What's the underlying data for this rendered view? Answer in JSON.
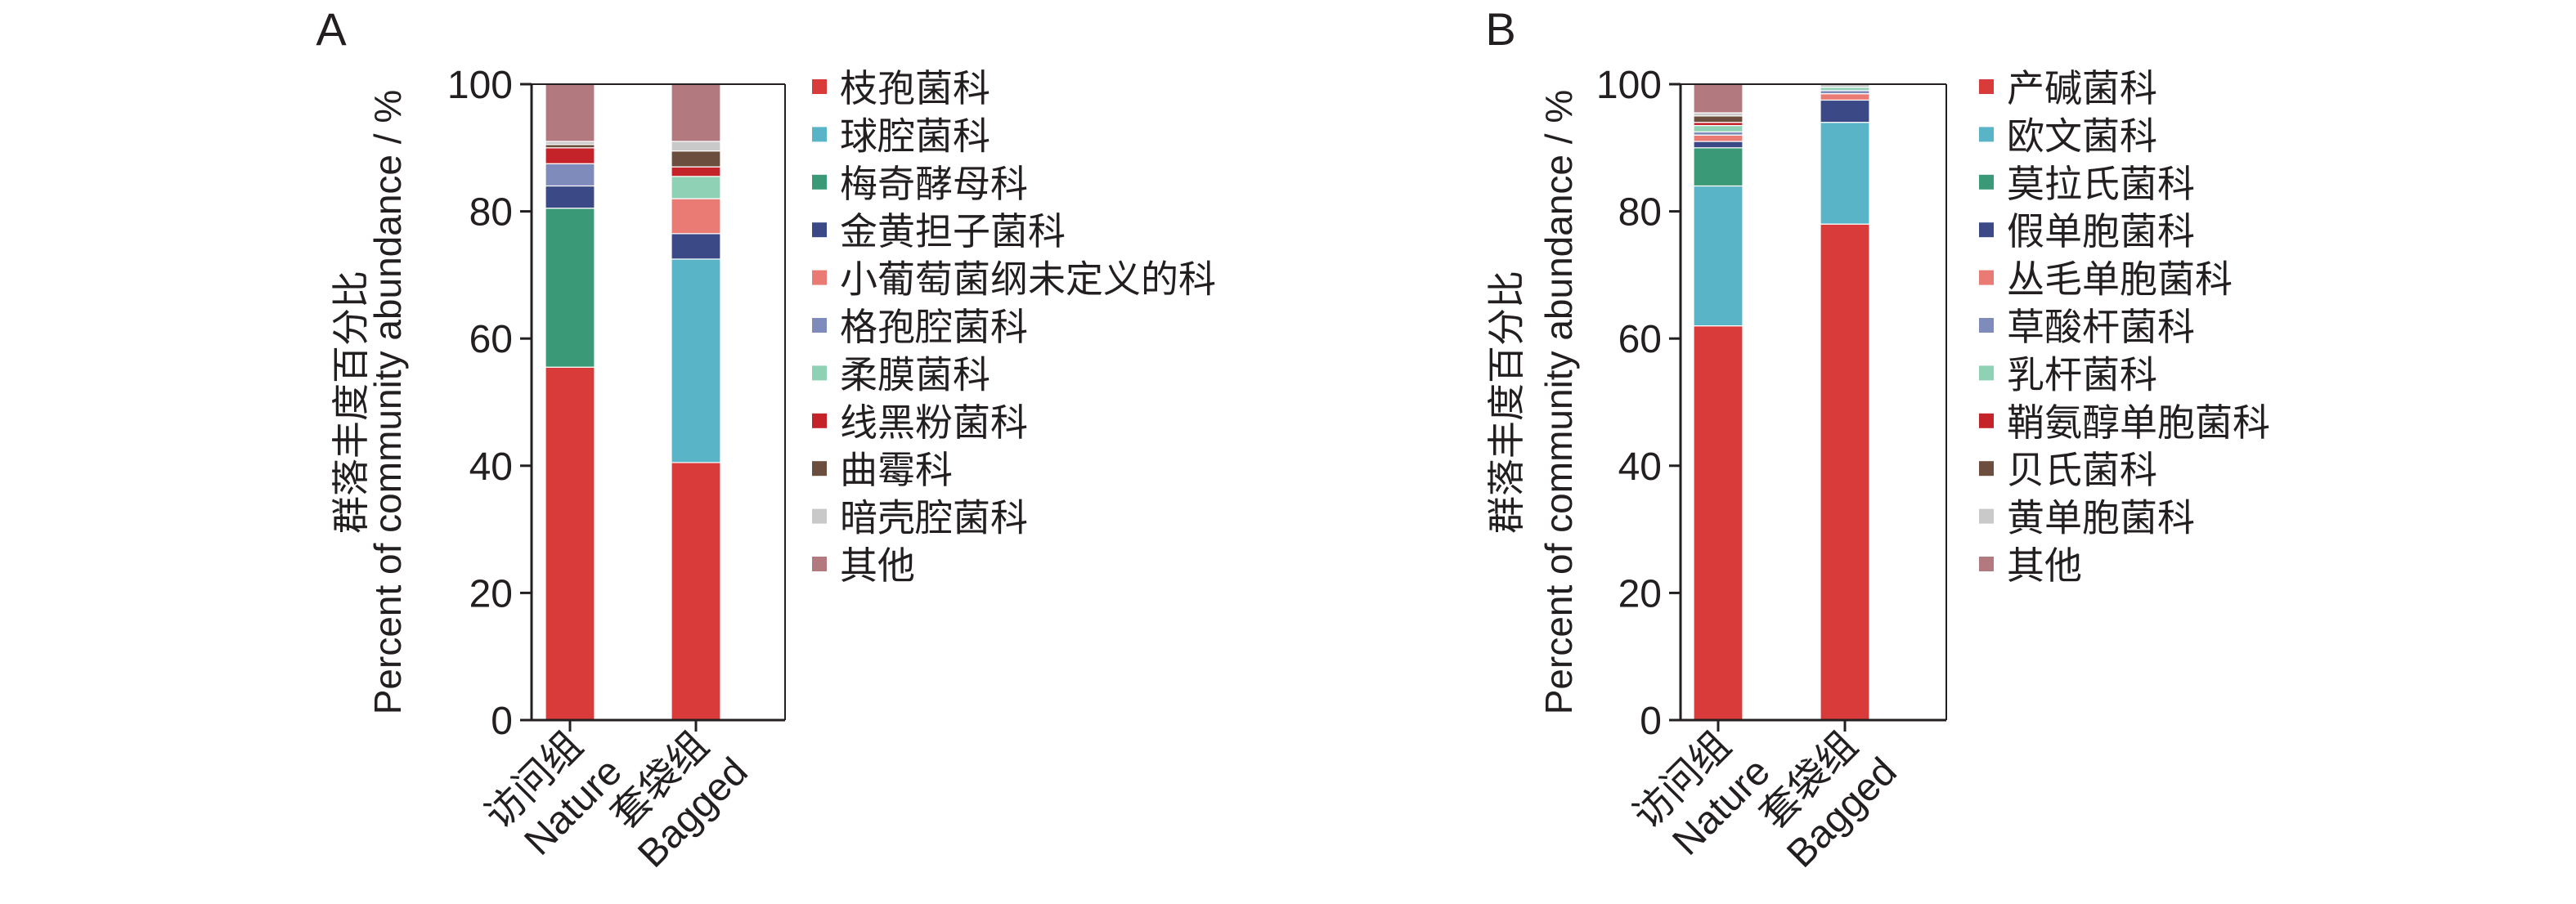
{
  "chart_data": [
    {
      "type": "bar",
      "stacked": true,
      "panel_label": "A",
      "ylabel_cn": "群落丰度百分比",
      "ylabel_en": "Percent of community abundance / %",
      "ylim": [
        0,
        100
      ],
      "yticks": [
        "0",
        "20",
        "40",
        "60",
        "80",
        "100"
      ],
      "categories": [
        {
          "cn": "访问组",
          "en": "Nature"
        },
        {
          "cn": "套袋组",
          "en": "Bagged"
        }
      ],
      "series": [
        {
          "name": "枝孢菌科",
          "color": "#d93b3b",
          "values": [
            55.5,
            40.5
          ]
        },
        {
          "name": "球腔菌科",
          "color": "#5ab4c8",
          "values": [
            0.0,
            32.0
          ]
        },
        {
          "name": "梅奇酵母科",
          "color": "#3a9a78",
          "values": [
            25.0,
            0.0
          ]
        },
        {
          "name": "金黄担子菌科",
          "color": "#3b4a86",
          "values": [
            3.5,
            4.0
          ]
        },
        {
          "name": "小葡萄菌纲未定义的科",
          "color": "#ea7b74",
          "values": [
            0.0,
            5.5
          ]
        },
        {
          "name": "格孢腔菌科",
          "color": "#7f8cbb",
          "values": [
            3.5,
            0.0
          ]
        },
        {
          "name": "柔膜菌科",
          "color": "#8fd1b5",
          "values": [
            0.0,
            3.5
          ]
        },
        {
          "name": "线黑粉菌科",
          "color": "#c5232a",
          "values": [
            2.5,
            1.5
          ]
        },
        {
          "name": "曲霉科",
          "color": "#6b4e3d",
          "values": [
            0.5,
            2.5
          ]
        },
        {
          "name": "暗壳腔菌科",
          "color": "#c9c9c9",
          "values": [
            0.5,
            1.5
          ]
        },
        {
          "name": "其他",
          "color": "#b27a7e",
          "values": [
            9.0,
            9.0
          ]
        }
      ]
    },
    {
      "type": "bar",
      "stacked": true,
      "panel_label": "B",
      "ylabel_cn": "群落丰度百分比",
      "ylabel_en": "Percent of community abundance / %",
      "ylim": [
        0,
        100
      ],
      "yticks": [
        "0",
        "20",
        "40",
        "60",
        "80",
        "100"
      ],
      "categories": [
        {
          "cn": "访问组",
          "en": "Nature"
        },
        {
          "cn": "套袋组",
          "en": "Bagged"
        }
      ],
      "series": [
        {
          "name": "产碱菌科",
          "color": "#d93b3b",
          "values": [
            62.0,
            78.0
          ]
        },
        {
          "name": "欧文菌科",
          "color": "#5ab4c8",
          "values": [
            22.0,
            16.0
          ]
        },
        {
          "name": "莫拉氏菌科",
          "color": "#3a9a78",
          "values": [
            6.0,
            0.0
          ]
        },
        {
          "name": "假单胞菌科",
          "color": "#3b4a86",
          "values": [
            1.0,
            3.5
          ]
        },
        {
          "name": "丛毛单胞菌科",
          "color": "#ea7b74",
          "values": [
            1.0,
            1.0
          ]
        },
        {
          "name": "草酸杆菌科",
          "color": "#7f8cbb",
          "values": [
            0.5,
            0.5
          ]
        },
        {
          "name": "乳杆菌科",
          "color": "#8fd1b5",
          "values": [
            1.0,
            0.5
          ]
        },
        {
          "name": "鞘氨醇单胞菌科",
          "color": "#c5232a",
          "values": [
            0.5,
            0.0
          ]
        },
        {
          "name": "贝氏菌科",
          "color": "#6b4e3d",
          "values": [
            1.0,
            0.0
          ]
        },
        {
          "name": "黄单胞菌科",
          "color": "#c9c9c9",
          "values": [
            0.5,
            0.5
          ]
        },
        {
          "name": "其他",
          "color": "#b27a7e",
          "values": [
            4.5,
            0.0
          ]
        }
      ]
    }
  ]
}
